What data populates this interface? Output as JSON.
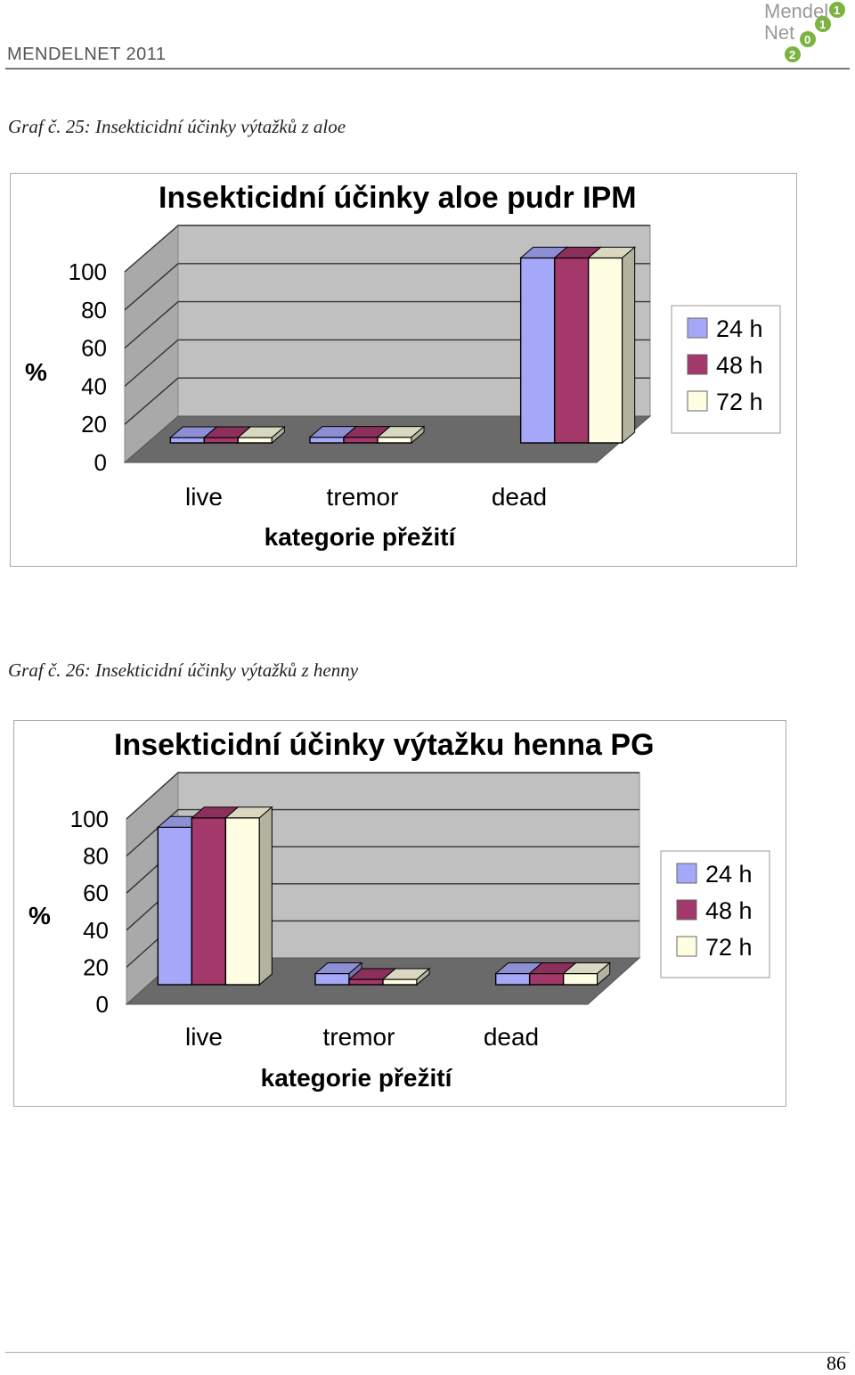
{
  "header": {
    "brand": "MENDELNET 2011",
    "logo_text": [
      "Mendel",
      "Net",
      "1",
      "1",
      "0",
      "2"
    ]
  },
  "captions": [
    "Graf č. 25: Insekticidní účinky výtažků z aloe",
    "Graf č. 26: Insekticidní účinky výtažků z henny"
  ],
  "colors": {
    "series_24h": "#a5a8f8",
    "series_48h": "#a3386b",
    "series_72h": "#fffee2",
    "wall": "#c0c0c0",
    "floor": "#6a6a6a"
  },
  "chart_data": [
    {
      "type": "bar",
      "title": "Insekticidní účinky aloe pudr IPM",
      "xlabel": "kategorie přežití",
      "ylabel": "%",
      "categories": [
        "live",
        "tremor",
        "dead"
      ],
      "yticks": [
        "0",
        "20",
        "40",
        "60",
        "80",
        "100"
      ],
      "ylim": [
        0,
        100
      ],
      "series": [
        {
          "name": "24 h",
          "values": [
            0,
            3,
            97
          ]
        },
        {
          "name": "48 h",
          "values": [
            0,
            3,
            97
          ]
        },
        {
          "name": "72 h",
          "values": [
            0,
            3,
            97
          ]
        }
      ],
      "legend": "right",
      "grid": true
    },
    {
      "type": "bar",
      "title": "Insekticidní účinky výtažku  henna  PG",
      "xlabel": "kategorie přežití",
      "ylabel": "%",
      "categories": [
        "live",
        "tremor",
        "dead"
      ],
      "yticks": [
        "0",
        "20",
        "40",
        "60",
        "80",
        "100"
      ],
      "ylim": [
        0,
        100
      ],
      "series": [
        {
          "name": "24 h",
          "values": [
            85,
            6,
            6
          ]
        },
        {
          "name": "48 h",
          "values": [
            90,
            2,
            6
          ]
        },
        {
          "name": "72 h",
          "values": [
            90,
            0,
            6
          ]
        }
      ],
      "legend": "right",
      "grid": true
    }
  ],
  "page_number": "86"
}
